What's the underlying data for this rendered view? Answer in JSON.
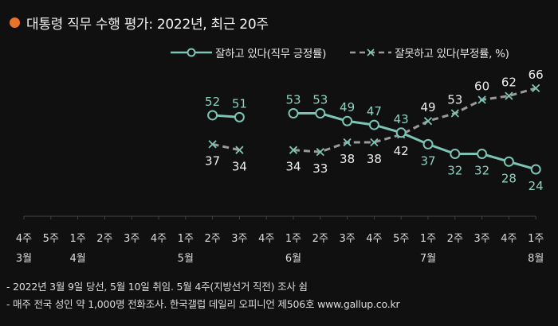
{
  "header": {
    "title": "대통령 직무 수행 평가: 2022년, 최근 20주",
    "dot_color": "#E8742A"
  },
  "legend": {
    "positive_label": "잘하고 있다(직무 긍정률)",
    "negative_label": "잘못하고 있다(부정률, %)"
  },
  "colors": {
    "background": "#101010",
    "positive": "#7CC4B4",
    "negative_line": "#9A9A9A",
    "negative_marker": "#7CC4B4",
    "positive_label": "#8FD0C0",
    "negative_label": "#EEEEEE",
    "axis": "#444444",
    "tick_label": "#DDDDDD"
  },
  "chart_data": {
    "type": "line",
    "title": "대통령 직무 수행 평가: 2022년, 최근 20주",
    "xlabel": "",
    "ylabel": "%",
    "ylim": [
      0,
      70
    ],
    "grid": false,
    "legend_position": "top-right",
    "categories": [
      "3월 4주",
      "3월 5주",
      "4월 1주",
      "4월 2주",
      "4월 3주",
      "4월 4주",
      "5월 1주",
      "5월 2주",
      "5월 3주",
      "5월 4주",
      "6월 1주",
      "6월 2주",
      "6월 3주",
      "6월 4주",
      "6월 5주",
      "7월 1주",
      "7월 2주",
      "7월 3주",
      "7월 4주",
      "8월 1주"
    ],
    "x_tick_week_labels": [
      "4주",
      "5주",
      "1주",
      "2주",
      "3주",
      "4주",
      "1주",
      "2주",
      "3주",
      "4주",
      "1주",
      "2주",
      "3주",
      "4주",
      "5주",
      "1주",
      "2주",
      "3주",
      "4주",
      "1주"
    ],
    "x_tick_month_labels": [
      {
        "index": 0,
        "label": "3월"
      },
      {
        "index": 2,
        "label": "4월"
      },
      {
        "index": 6,
        "label": "5월"
      },
      {
        "index": 10,
        "label": "6월"
      },
      {
        "index": 15,
        "label": "7월"
      },
      {
        "index": 19,
        "label": "8월"
      }
    ],
    "series": [
      {
        "name": "잘하고 있다(직무 긍정률)",
        "values": [
          null,
          null,
          null,
          null,
          null,
          null,
          null,
          52,
          51,
          null,
          53,
          53,
          49,
          47,
          43,
          37,
          32,
          32,
          28,
          24
        ],
        "label_pos": [
          null,
          null,
          null,
          null,
          null,
          null,
          null,
          "above",
          "above",
          null,
          "above",
          "above",
          "above",
          "above",
          "above",
          "below",
          "below",
          "below",
          "below",
          "below"
        ]
      },
      {
        "name": "잘못하고 있다(부정률, %)",
        "values": [
          null,
          null,
          null,
          null,
          null,
          null,
          null,
          37,
          34,
          null,
          34,
          33,
          38,
          38,
          42,
          49,
          53,
          60,
          62,
          66
        ],
        "label_pos": [
          null,
          null,
          null,
          null,
          null,
          null,
          null,
          "below",
          "below",
          null,
          "below",
          "below",
          "below",
          "below",
          "below",
          "above",
          "above",
          "above",
          "above",
          "above"
        ]
      }
    ]
  },
  "notes": [
    "- 2022년 3월 9일 당선, 5월 10일 취임. 5월 4주(지방선거 직전) 조사 쉼",
    "- 매주 전국 성인 약 1,000명 전화조사. 한국갤럽 데일리 오피니언 제506호 www.gallup.co.kr"
  ]
}
